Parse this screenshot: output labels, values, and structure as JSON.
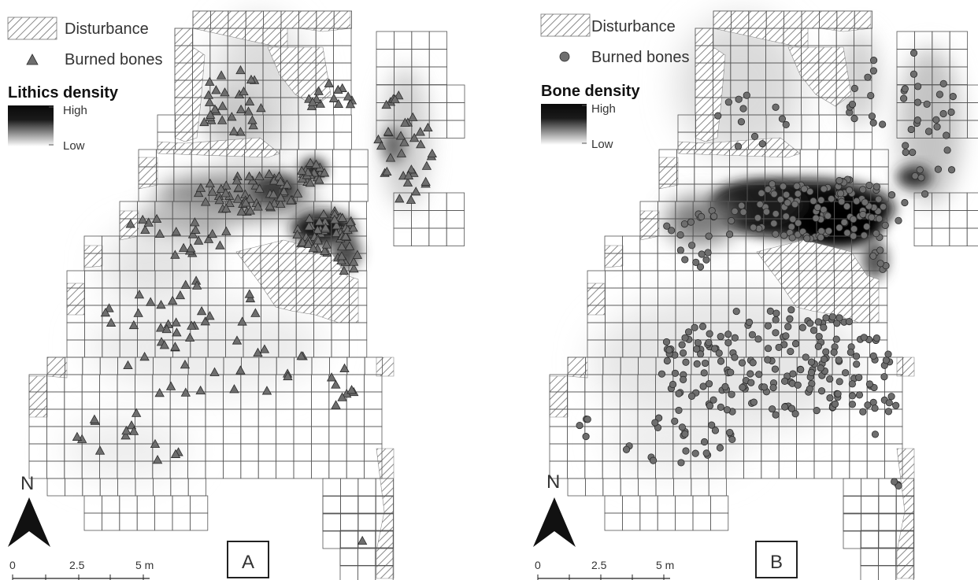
{
  "panels": [
    {
      "id": "A",
      "label": "A",
      "legend": {
        "disturbance": "Disturbance",
        "burned_bones": "Burned bones",
        "density_title": "Lithics density",
        "high": "High",
        "low": "Low"
      },
      "marker": "triangle",
      "north": "N",
      "scale": [
        "0",
        "2.5",
        "5 m"
      ]
    },
    {
      "id": "B",
      "label": "B",
      "legend": {
        "disturbance": "Disturbance",
        "burned_bones": "Burned bones",
        "density_title": "Bone density",
        "high": "High",
        "low": "Low"
      },
      "marker": "circle",
      "north": "N",
      "scale": [
        "0",
        "2.5",
        "5 m"
      ]
    }
  ],
  "colors": {
    "grid": "#555555",
    "hatch": "#888888",
    "marker_fill": "#6e6e6e",
    "marker_stroke": "#2b2b2b",
    "density_high": "#0a0a0a",
    "density_low": "#ffffff"
  }
}
